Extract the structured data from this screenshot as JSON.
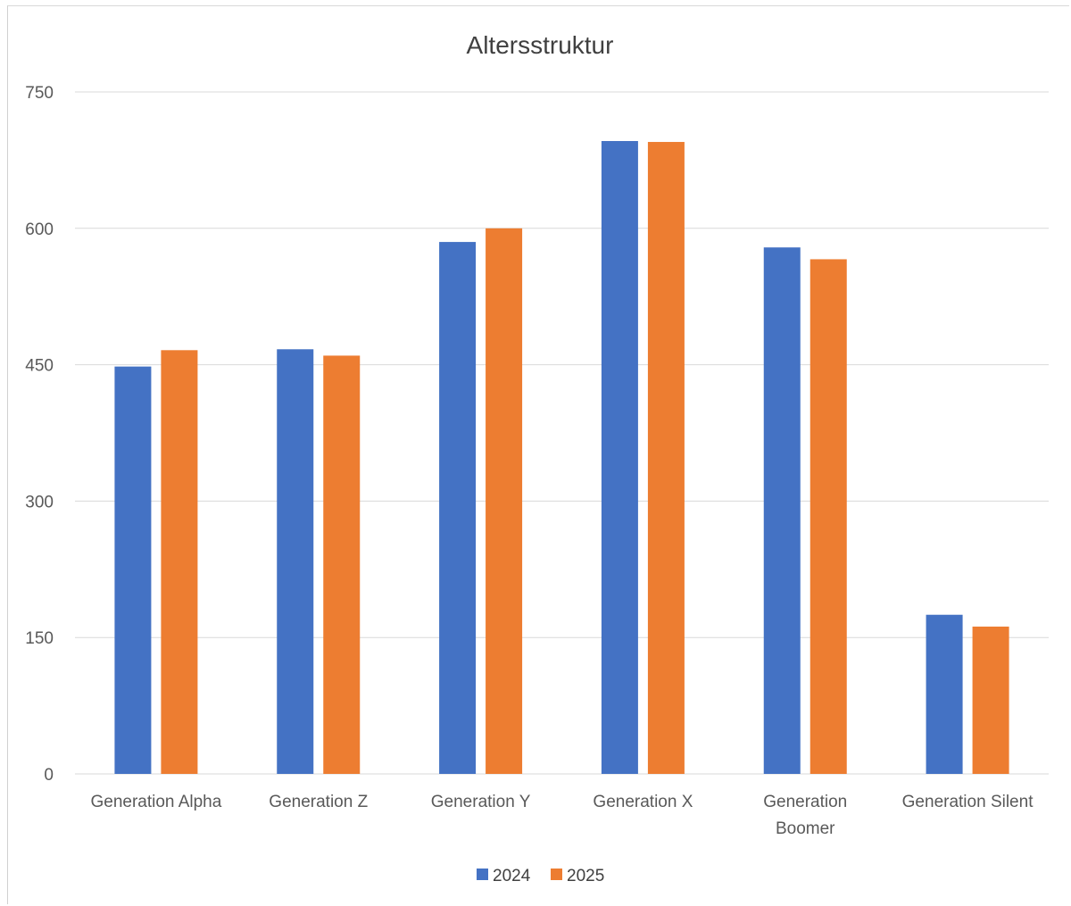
{
  "chart_data": {
    "type": "bar",
    "title": "Altersstruktur",
    "xlabel": "",
    "ylabel": "",
    "categories": [
      [
        "Generation Alpha"
      ],
      [
        "Generation Z"
      ],
      [
        "Generation Y"
      ],
      [
        "Generation X"
      ],
      [
        "Generation",
        "Boomer"
      ],
      [
        "Generation Silent"
      ]
    ],
    "series": [
      {
        "name": "2024",
        "color": "#4472C4",
        "values": [
          448,
          467,
          585,
          696,
          579,
          175
        ]
      },
      {
        "name": "2025",
        "color": "#ED7D31",
        "values": [
          466,
          460,
          600,
          695,
          566,
          162
        ]
      }
    ],
    "ylim": [
      0,
      750
    ],
    "yticks": [
      "0",
      "150",
      "300",
      "450",
      "600",
      "750"
    ],
    "grid": true,
    "legend_position": "bottom"
  }
}
